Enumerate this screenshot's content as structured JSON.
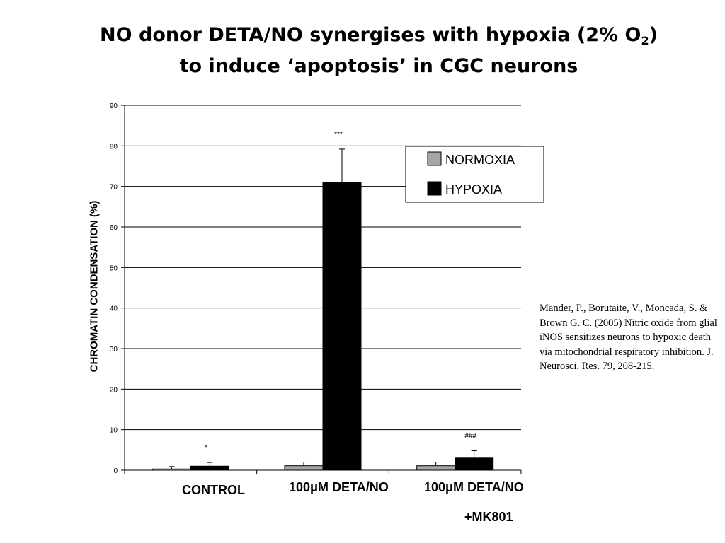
{
  "title": {
    "line1_prefix": "NO donor DETA/NO synergises with hypoxia (2% O",
    "line1_sub": "2",
    "line1_suffix": ")",
    "line2": "to induce ‘apoptosis’ in CGC neurons"
  },
  "citation": "Mander, P., Borutaite, V., Moncada, S. & Brown G. C. (2005) Nitric oxide from glial iNOS sensitizes neurons to hypoxic death via mitochondrial respiratory inhibition. J. Neurosci. Res. 79, 208-215.",
  "chart_data": {
    "type": "bar",
    "title": "",
    "ylabel": "CHROMATIN CONDENSATION (%)",
    "xlabel": "",
    "ylim": [
      0,
      90
    ],
    "yticks": [
      "0",
      "10",
      "20",
      "30",
      "40",
      "50",
      "60",
      "70",
      "80",
      "90"
    ],
    "grid": true,
    "legend_position": "top-right",
    "categories": [
      "CONTROL",
      "100μM DETA/NO",
      "100μM DETA/NO +MK801"
    ],
    "category_lines": [
      [
        "CONTROL"
      ],
      [
        "100μM DETA/NO"
      ],
      [
        "100μM DETA/NO",
        "+MK801"
      ]
    ],
    "series": [
      {
        "name": "NORMOXIA",
        "color": "#a6a6a6",
        "values": [
          0.3,
          1.1,
          1.1
        ],
        "errors": [
          0.6,
          0.9,
          0.9
        ]
      },
      {
        "name": "HYPOXIA",
        "color": "#000000",
        "values": [
          1.0,
          71.0,
          3.0
        ],
        "errors": [
          0.9,
          8.2,
          1.8
        ]
      }
    ],
    "annotations": [
      {
        "category": 0,
        "series": 1,
        "text": "*"
      },
      {
        "category": 1,
        "series": 1,
        "text": "***"
      },
      {
        "category": 2,
        "series": 1,
        "text": "###"
      }
    ]
  }
}
